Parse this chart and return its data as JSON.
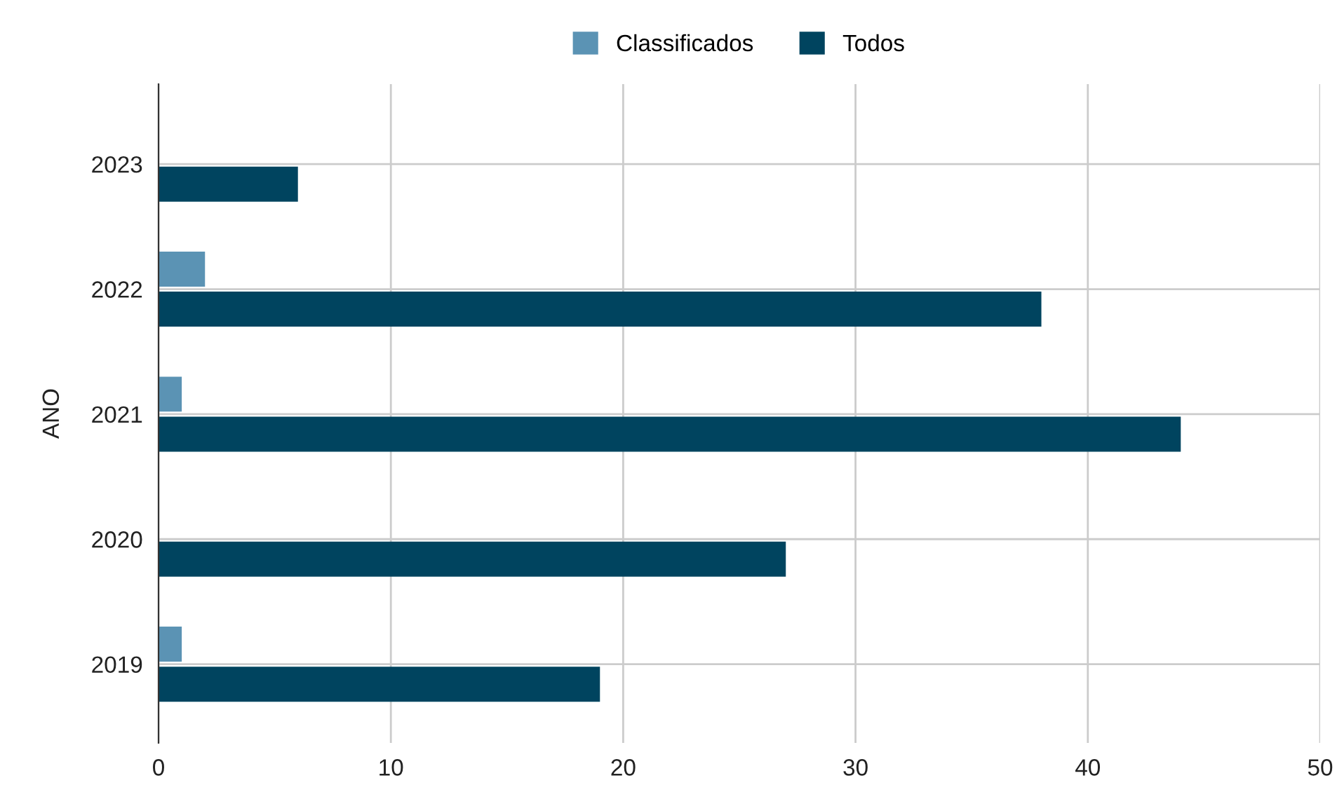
{
  "chart_data": {
    "type": "bar",
    "orientation": "horizontal",
    "ylabel": "ANO",
    "categories": [
      "2023",
      "2022",
      "2021",
      "2020",
      "2019"
    ],
    "series": [
      {
        "name": "Classificados",
        "color": "#5b93b4",
        "values": [
          null,
          2,
          1,
          null,
          1
        ]
      },
      {
        "name": "Todos",
        "color": "#00445f",
        "values": [
          6,
          38,
          44,
          27,
          19
        ]
      }
    ],
    "xlim": [
      0,
      50
    ],
    "xticks": [
      0,
      10,
      20,
      30,
      40,
      50
    ],
    "grid": true,
    "legend": "top"
  }
}
